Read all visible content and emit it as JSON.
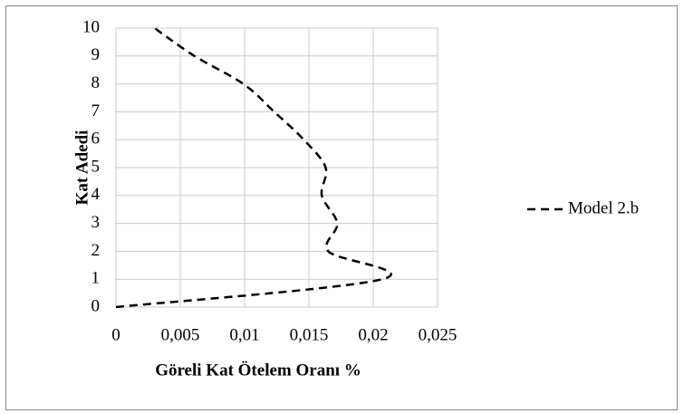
{
  "chart_data": {
    "type": "line",
    "x_label": "Göreli Kat Ötelem Oranı %",
    "y_label": "Kat Adedi",
    "series": [
      {
        "name": "Model 2.b",
        "color": "#000000",
        "x": [
          0,
          0.0207,
          0.0165,
          0.0172,
          0.016,
          0.0163,
          0.0146,
          0.0123,
          0.0099,
          0.0061,
          0.003
        ],
        "values": [
          0,
          1,
          2,
          3,
          4,
          5,
          6,
          7,
          8,
          9,
          10
        ]
      }
    ],
    "xlim": [
      0,
      0.025
    ],
    "xticks": [
      0,
      {
        "value": 0.005,
        "label": "0,005"
      },
      {
        "value": 0.01,
        "label": "0,01"
      },
      {
        "value": 0.015,
        "label": "0,015"
      },
      {
        "value": 0.02,
        "label": "0,02"
      },
      {
        "value": 0.025,
        "label": "0,025"
      }
    ],
    "ylim": [
      0,
      10
    ],
    "yticks": [
      0,
      1,
      2,
      3,
      4,
      5,
      6,
      7,
      8,
      9,
      10
    ],
    "grid": true,
    "legend": "right"
  }
}
